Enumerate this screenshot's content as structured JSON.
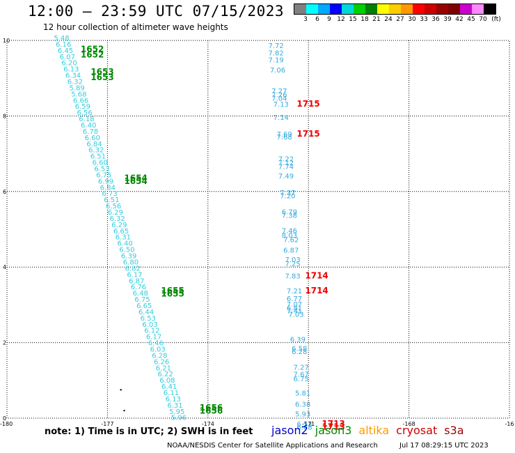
{
  "title": "12:00 — 23:59 UTC 07/15/2023",
  "subtitle": "12 hour collection of altimeter wave heights",
  "legend": {
    "colors": [
      "#808080",
      "#00ffff",
      "#00aaff",
      "#0000ff",
      "#00d8d8",
      "#00d000",
      "#008000",
      "#ffff00",
      "#ffcc00",
      "#ff9900",
      "#ff0000",
      "#cc0000",
      "#990000",
      "#800000",
      "#cc00cc",
      "#ff88ff",
      "#000000"
    ],
    "labels": [
      "3",
      "6",
      "9",
      "12",
      "15",
      "18",
      "21",
      "24",
      "27",
      "30",
      "33",
      "36",
      "39",
      "42",
      "45",
      "70"
    ],
    "unit": "(ft)"
  },
  "axes": {
    "x_ticks": [
      "-180",
      "-177",
      "-174",
      "-171",
      "-168",
      "-16"
    ],
    "y_ticks": [
      "10",
      "8",
      "6",
      "4",
      "2",
      "0"
    ]
  },
  "satellites": [
    {
      "name": "jason2",
      "color": "#0000cc"
    },
    {
      "name": "jason3",
      "color": "#008800"
    },
    {
      "name": "altika",
      "color": "#ff9900"
    },
    {
      "name": "cryosat",
      "color": "#cc0000"
    },
    {
      "name": "s3a",
      "color": "#990000"
    }
  ],
  "note": "note: 1) Time is in UTC; 2) SWH is in feet",
  "footer": {
    "credit": "NOAA/NESDIS Center for Satellite Applications and Research",
    "timestamp": "Jul 17 08:29:15 UTC 2023"
  },
  "track1": {
    "color": "#33ccdd",
    "values": [
      "5.48",
      "6.16",
      "6.45",
      "6.07",
      "6.20",
      "6.13",
      "6.34",
      "6.32",
      "5.89",
      "5.68",
      "6.66",
      "6.59",
      "6.56",
      "6.18",
      "6.40",
      "6.78",
      "6.60",
      "6.84",
      "6.32",
      "6.51",
      "6.60",
      "6.53",
      "6.75",
      "6.99",
      "6.84",
      "6.73",
      "6.51",
      "6.56",
      "6.29",
      "6.32",
      "6.29",
      "6.65",
      "6.31",
      "6.40",
      "6.50",
      "6.39",
      "6.80",
      "6.82",
      "6.17",
      "6.87",
      "6.76",
      "6.48",
      "6.75",
      "6.65",
      "6.44",
      "6.53",
      "6.03",
      "6.12",
      "6.17",
      "6.46",
      "6.03",
      "6.28",
      "6.26",
      "6.21",
      "6.22",
      "6.08",
      "6.41",
      "6.11",
      "6.13",
      "6.31",
      "5.95",
      "5.96"
    ]
  },
  "track1_times": [
    {
      "t": "1652",
      "lon": -177.8,
      "lat": 9.7
    },
    {
      "t": "1652",
      "lon": -177.8,
      "lat": 9.55
    },
    {
      "t": "1653",
      "lon": -177.5,
      "lat": 9.1
    },
    {
      "t": "1653",
      "lon": -177.5,
      "lat": 8.95
    },
    {
      "t": "1654",
      "lon": -176.5,
      "lat": 6.28
    },
    {
      "t": "1654",
      "lon": -176.5,
      "lat": 6.2
    },
    {
      "t": "1655",
      "lon": -175.4,
      "lat": 3.3
    },
    {
      "t": "1655",
      "lon": -175.4,
      "lat": 3.22
    },
    {
      "t": "1656",
      "lon": -174.25,
      "lat": 0.2
    },
    {
      "t": "1656",
      "lon": -174.25,
      "lat": 0.12
    }
  ],
  "track2": {
    "color": "#33aadd",
    "points": [
      {
        "v": "7.72",
        "lon": -172.2,
        "lat": 9.8
      },
      {
        "v": "7.82",
        "lon": -172.2,
        "lat": 9.6
      },
      {
        "v": "7.19",
        "lon": -172.2,
        "lat": 9.42
      },
      {
        "v": "7.06",
        "lon": -172.15,
        "lat": 9.15
      },
      {
        "v": "7.27",
        "lon": -172.1,
        "lat": 8.6
      },
      {
        "v": "7.26",
        "lon": -172.1,
        "lat": 8.5
      },
      {
        "v": "7.04",
        "lon": -172.1,
        "lat": 8.4
      },
      {
        "v": "7.13",
        "lon": -172.05,
        "lat": 8.25
      },
      {
        "v": "7.14",
        "lon": -172.05,
        "lat": 7.9
      },
      {
        "v": "7.69",
        "lon": -171.95,
        "lat": 7.45
      },
      {
        "v": "7.68",
        "lon": -171.95,
        "lat": 7.38
      },
      {
        "v": "7.22",
        "lon": -171.9,
        "lat": 6.8
      },
      {
        "v": "7.12",
        "lon": -171.9,
        "lat": 6.7
      },
      {
        "v": "7.74",
        "lon": -171.9,
        "lat": 6.6
      },
      {
        "v": "7.49",
        "lon": -171.9,
        "lat": 6.35
      },
      {
        "v": "7.37",
        "lon": -171.85,
        "lat": 5.9
      },
      {
        "v": "7.20",
        "lon": -171.85,
        "lat": 5.82
      },
      {
        "v": "6.79",
        "lon": -171.8,
        "lat": 5.4
      },
      {
        "v": "7.38",
        "lon": -171.8,
        "lat": 5.3
      },
      {
        "v": "7.46",
        "lon": -171.8,
        "lat": 4.9
      },
      {
        "v": "8.03",
        "lon": -171.8,
        "lat": 4.78
      },
      {
        "v": "7.62",
        "lon": -171.75,
        "lat": 4.66
      },
      {
        "v": "6.87",
        "lon": -171.75,
        "lat": 4.38
      },
      {
        "v": "7.03",
        "lon": -171.7,
        "lat": 4.13
      },
      {
        "v": "7.25",
        "lon": -171.7,
        "lat": 4.02
      },
      {
        "v": "7.83",
        "lon": -171.7,
        "lat": 3.7
      },
      {
        "v": "7.21",
        "lon": -171.65,
        "lat": 3.3
      },
      {
        "v": "6.77",
        "lon": -171.65,
        "lat": 3.1
      },
      {
        "v": "7.07",
        "lon": -171.65,
        "lat": 2.95
      },
      {
        "v": "6.81",
        "lon": -171.65,
        "lat": 2.85
      },
      {
        "v": "7.41",
        "lon": -171.65,
        "lat": 2.78
      },
      {
        "v": "7.03",
        "lon": -171.6,
        "lat": 2.68
      },
      {
        "v": "6.39",
        "lon": -171.55,
        "lat": 2.02
      },
      {
        "v": "6.58",
        "lon": -171.5,
        "lat": 1.78
      },
      {
        "v": "6.28",
        "lon": -171.5,
        "lat": 1.7
      },
      {
        "v": "7.27",
        "lon": -171.45,
        "lat": 1.28
      },
      {
        "v": "7.67",
        "lon": -171.45,
        "lat": 1.1
      },
      {
        "v": "6.75",
        "lon": -171.45,
        "lat": 0.98
      },
      {
        "v": "5.81",
        "lon": -171.4,
        "lat": 0.6
      },
      {
        "v": "6.38",
        "lon": -171.4,
        "lat": 0.3
      },
      {
        "v": "5.93",
        "lon": -171.4,
        "lat": 0.05
      },
      {
        "v": "6.53",
        "lon": -171.35,
        "lat": -0.22
      },
      {
        "v": "6.68",
        "lon": -171.35,
        "lat": -0.3
      }
    ]
  },
  "track2_times": [
    {
      "t": "1715",
      "lon": -171.35,
      "lat": 8.25
    },
    {
      "t": "1715",
      "lon": -171.35,
      "lat": 7.45
    },
    {
      "t": "1714",
      "lon": -171.1,
      "lat": 3.7
    },
    {
      "t": "1714",
      "lon": -171.1,
      "lat": 3.3
    },
    {
      "t": "1713",
      "lon": -170.6,
      "lat": -0.22
    },
    {
      "t": "1713",
      "lon": -170.6,
      "lat": -0.3
    }
  ],
  "map_view": {
    "lon_min": -180,
    "lon_max": -165,
    "lat_min": 0,
    "lat_max": 10
  },
  "colors": {
    "grid": "#000000",
    "track1_time": "#008800",
    "track2_time": "#ee0000"
  }
}
